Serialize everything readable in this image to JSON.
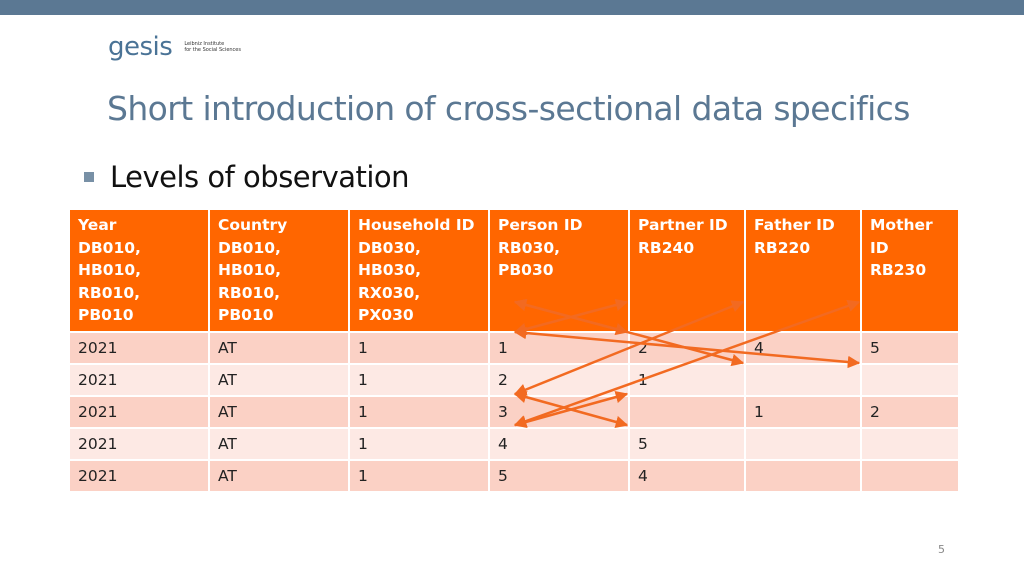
{
  "logo": {
    "word": "gesis",
    "subtitle_line1": "Leibniz Institute",
    "subtitle_line2": "for the Social Sciences"
  },
  "title": "Short introduction of cross-sectional data specifics",
  "bullet": "Levels of observation",
  "table": {
    "headers": [
      [
        "Year",
        "DB010, HB010,",
        "RB010, PB010"
      ],
      [
        "Country",
        "DB010, HB010,",
        "RB010, PB010"
      ],
      [
        "Household ID",
        "DB030, HB030,",
        "RX030, PX030"
      ],
      [
        "Person ID",
        "RB030, PB030",
        ""
      ],
      [
        "Partner ID",
        "RB240",
        ""
      ],
      [
        "Father ID",
        "RB220",
        ""
      ],
      [
        "Mother",
        "ID",
        "RB230"
      ]
    ],
    "rows": [
      [
        "2021",
        "AT",
        "1",
        "1",
        "2",
        "4",
        "5"
      ],
      [
        "2021",
        "AT",
        "1",
        "2",
        "1",
        "",
        ""
      ],
      [
        "2021",
        "AT",
        "1",
        "3",
        "",
        "1",
        "2"
      ],
      [
        "2021",
        "AT",
        "1",
        "4",
        "5",
        "",
        ""
      ],
      [
        "2021",
        "AT",
        "1",
        "5",
        "4",
        "",
        ""
      ]
    ]
  },
  "links": [
    {
      "from_row": 1,
      "to_row": 0,
      "to_col": "Partner ID"
    },
    {
      "from_row": 0,
      "to_row": 1,
      "to_col": "Partner ID"
    },
    {
      "from_row": 0,
      "to_row": 2,
      "to_col": "Father ID"
    },
    {
      "from_row": 1,
      "to_row": 2,
      "to_col": "Mother ID"
    },
    {
      "from_row": 3,
      "to_row": 0,
      "to_col": "Father ID"
    },
    {
      "from_row": 4,
      "to_row": 0,
      "to_col": "Mother ID"
    },
    {
      "from_row": 4,
      "to_row": 3,
      "to_col": "Partner ID"
    },
    {
      "from_row": 3,
      "to_row": 4,
      "to_col": "Partner ID"
    }
  ],
  "colors": {
    "header": "#ff6600",
    "arrow": "#f26a21",
    "title": "#5b7893",
    "row_odd": "#fbd1c5",
    "row_even": "#fde9e4"
  },
  "page_number": "5"
}
